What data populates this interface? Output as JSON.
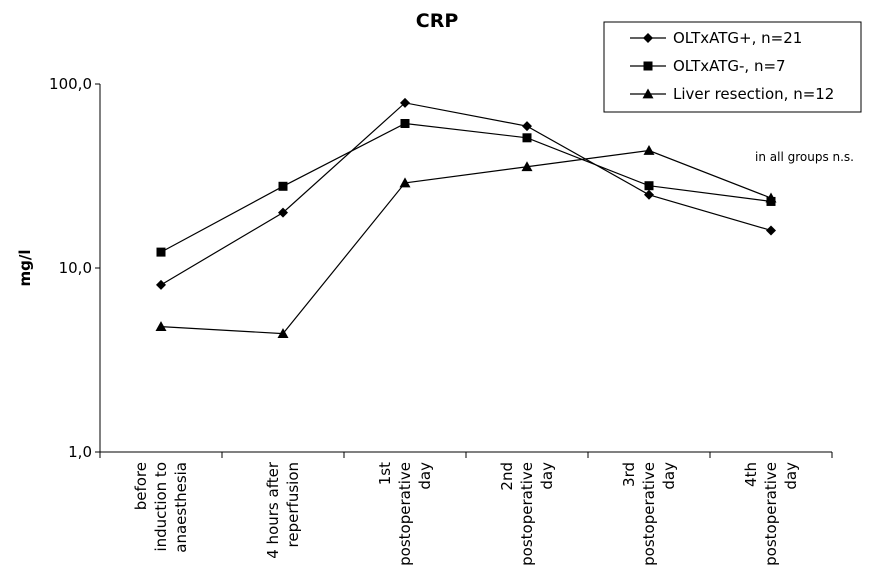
{
  "chart_data": {
    "type": "line",
    "title": "CRP",
    "xlabel": "",
    "ylabel": "mg/l",
    "yscale": "log",
    "ylim": [
      1,
      100
    ],
    "ytick_labels": [
      "1,0",
      "10,0",
      "100,0"
    ],
    "grid": false,
    "legend_position": "top-right",
    "categories": [
      [
        "before",
        "induction to",
        "anaesthesia"
      ],
      [
        "4 hours after",
        "reperfusion"
      ],
      [
        "1st",
        "postoperative",
        "day"
      ],
      [
        "2nd",
        "postoperative",
        "day"
      ],
      [
        "3rd",
        "postoperative",
        "day"
      ],
      [
        "4th",
        "postoperative",
        "day"
      ]
    ],
    "series": [
      {
        "name": "OLTxATG+, n=21",
        "marker": "diamond",
        "values": [
          8.1,
          20.0,
          79.0,
          59.0,
          25.0,
          16.0
        ]
      },
      {
        "name": "OLTxATG-, n=7",
        "marker": "square",
        "values": [
          12.2,
          27.8,
          61.0,
          51.0,
          28.0,
          23.0
        ]
      },
      {
        "name": "Liver resection, n=12",
        "marker": "triangle",
        "values": [
          4.8,
          4.4,
          29.0,
          35.5,
          43.5,
          24.0
        ]
      }
    ],
    "annotations": [
      "in all groups n.s."
    ]
  }
}
